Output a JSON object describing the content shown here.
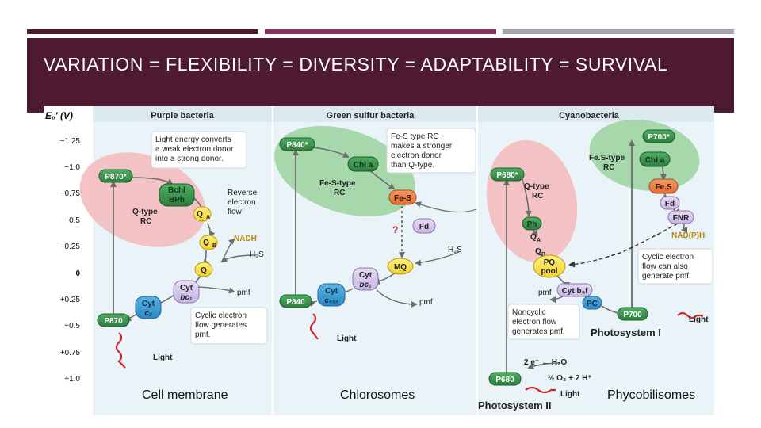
{
  "slide": {
    "title": "VARIATION = FLEXIBILITY = DIVERSITY = ADAPTABILITY = SURVIVAL",
    "accent_bars": [
      "#4e1a31",
      "#8a2e5a",
      "#a3a6ad"
    ]
  },
  "figure": {
    "y_axis": {
      "label": "E₀′ (V)",
      "ticks": [
        "−1.25",
        "−1.0",
        "−0.75",
        "−0.5",
        "−0.25",
        "0",
        "+0.25",
        "+0.5",
        "+0.75",
        "+1.0"
      ]
    },
    "purple": {
      "heading": "Purple bacteria",
      "note1": [
        "Light energy converts",
        "a weak electron donor",
        "into a strong donor."
      ],
      "p870_top": "P870*",
      "bchl": "Bchl",
      "bph": "BPh",
      "qa": "Q",
      "qa_sub": "A",
      "qb": "Q",
      "qb_sub": "B",
      "rc": [
        "Q-type",
        "RC"
      ],
      "reverse": [
        "Reverse",
        "electron",
        "flow"
      ],
      "nadh": "NADH",
      "h2s": "H₂S",
      "q": "Q",
      "cyt_bc1": [
        "Cyt",
        "bc₁"
      ],
      "cyt_c2": [
        "Cyt",
        "c₂"
      ],
      "pmf": "pmf",
      "p870_bottom": "P870",
      "note2": [
        "Cyclic electron",
        "flow generates",
        "pmf."
      ],
      "light": "Light"
    },
    "green": {
      "heading": "Green sulfur bacteria",
      "p840_top": "P840*",
      "chla": "Chl a",
      "note": [
        "Fe-S type RC",
        "makes a stronger",
        "electron donor",
        "than Q-type."
      ],
      "rc": [
        "Fe-S-type",
        "RC"
      ],
      "fes": "Fe-S",
      "fd": "Fd",
      "question": "?",
      "h2s": "H₂S",
      "mq": "MQ",
      "cyt_bc1": [
        "Cyt",
        "bc₁"
      ],
      "p840_bottom": "P840",
      "cyt_c553": [
        "Cyt",
        "c₅₅₃"
      ],
      "pmf": "pmf",
      "light": "Light"
    },
    "cyano": {
      "heading": "Cyanobacteria",
      "p700_top": "P700*",
      "fes_rc": [
        "Fe.S-type",
        "RC"
      ],
      "chla": "Chl a",
      "fes": "Fe.S",
      "fd": "Fd",
      "fnr": "FNR",
      "nadph": "NAD(P)H",
      "p680_top": "P680*",
      "rc": [
        "Q-type",
        "RC"
      ],
      "ph": "Ph",
      "qa": "Q",
      "qa_sub": "A",
      "qb": "Q",
      "qb_sub": "B",
      "pq_pool": [
        "PQ",
        "pool"
      ],
      "note_cyclic": [
        "Cyclic electron",
        "flow can also",
        "generate pmf."
      ],
      "pmf": "pmf",
      "cyt_b6f": "Cyt b₆f",
      "pc": "PC",
      "p700": "P700",
      "note_noncyclic": [
        "Noncyclic",
        "electron flow",
        "generates pmf."
      ],
      "light_ps1": "Light",
      "ps1": "Photosystem I",
      "water": "2 e⁻  ←  H₂O",
      "oxygen": "½ O₂ + 2 H⁺",
      "p680": "P680",
      "light_ps2": "Light",
      "ps2": "Photosystem II"
    }
  },
  "captions": {
    "left": "Cell membrane",
    "middle": "Chlorosomes",
    "right": "Phycobilisomes"
  }
}
